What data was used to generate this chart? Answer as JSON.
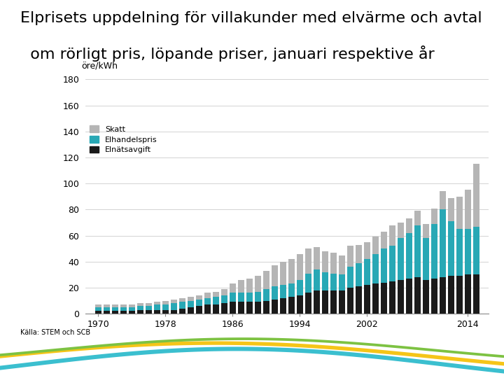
{
  "title_line1": "Elprisets uppdelning för villakunder med elvärme och avtal",
  "title_line2": "  om rörligt pris, löpande priser, januari respektive år",
  "ylabel": "öre/kWh",
  "source": "Källa: STEM och SCB",
  "years": [
    1970,
    1971,
    1972,
    1973,
    1974,
    1975,
    1976,
    1977,
    1978,
    1979,
    1980,
    1981,
    1982,
    1983,
    1984,
    1985,
    1986,
    1987,
    1988,
    1989,
    1990,
    1991,
    1992,
    1993,
    1994,
    1995,
    1996,
    1997,
    1998,
    1999,
    2000,
    2001,
    2002,
    2003,
    2004,
    2005,
    2006,
    2007,
    2008,
    2009,
    2010,
    2011,
    2012,
    2013,
    2014,
    2015
  ],
  "elnatsavgift": [
    2,
    2,
    2,
    2,
    2,
    3,
    3,
    3,
    3,
    3,
    4,
    5,
    6,
    7,
    7,
    8,
    9,
    9,
    9,
    9,
    10,
    11,
    12,
    13,
    14,
    16,
    18,
    18,
    18,
    18,
    20,
    21,
    22,
    23,
    24,
    25,
    26,
    27,
    28,
    26,
    27,
    28,
    29,
    29,
    30,
    30
  ],
  "elhandelspris": [
    3,
    3,
    3,
    3,
    3,
    3,
    3,
    4,
    4,
    5,
    5,
    5,
    5,
    5,
    6,
    6,
    7,
    7,
    7,
    8,
    9,
    10,
    10,
    10,
    12,
    15,
    16,
    14,
    13,
    12,
    16,
    18,
    20,
    23,
    26,
    27,
    32,
    35,
    40,
    32,
    42,
    52,
    42,
    36,
    35,
    37
  ],
  "skatt": [
    2,
    2,
    2,
    2,
    2,
    2,
    2,
    2,
    3,
    3,
    3,
    3,
    3,
    4,
    4,
    5,
    7,
    10,
    11,
    12,
    14,
    16,
    18,
    19,
    20,
    19,
    17,
    16,
    16,
    15,
    16,
    14,
    13,
    13,
    13,
    16,
    12,
    11,
    11,
    11,
    12,
    14,
    18,
    25,
    30,
    48
  ],
  "color_elnats": "#1a1a1a",
  "color_elhandel": "#28a8b5",
  "color_skatt": "#b5b5b5",
  "ylim_max": 180,
  "yticks": [
    0,
    20,
    40,
    60,
    80,
    100,
    120,
    140,
    160,
    180
  ],
  "xticks": [
    1970,
    1978,
    1986,
    1994,
    2002,
    2014
  ],
  "bg_color": "#ffffff",
  "title_fontsize": 16,
  "axis_fontsize": 9,
  "legend_labels": [
    "Skatt",
    "Elhandelspris",
    "Elnätsavgift"
  ],
  "wave_colors": [
    "#3bbfcf",
    "#f5c518",
    "#7dc242"
  ],
  "wave_colors2": [
    "#3bbfcf",
    "#f0b800",
    "#6db830"
  ]
}
